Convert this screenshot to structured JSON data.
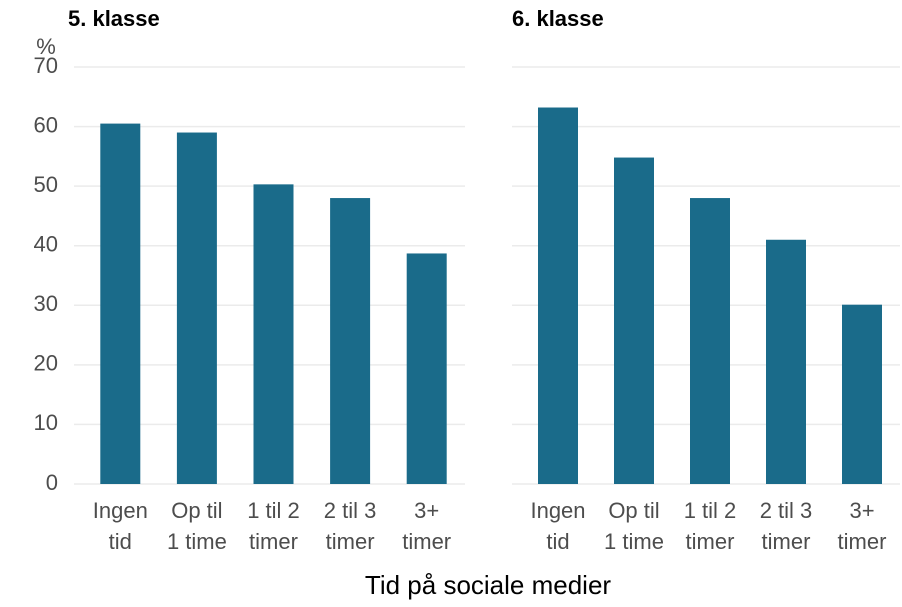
{
  "ylabel": "%",
  "xlabel": "Tid på sociale medier",
  "chart_data": [
    {
      "type": "bar",
      "title": "5. klasse",
      "categories": [
        [
          "Ingen",
          "tid"
        ],
        [
          "Op til",
          "1 time"
        ],
        [
          "1 til 2",
          "timer"
        ],
        [
          "2 til 3",
          "timer"
        ],
        [
          "3+",
          "timer"
        ]
      ],
      "values": [
        60.5,
        59,
        50.3,
        48,
        38.7
      ],
      "color": "#1a6b8a",
      "ylim": [
        0,
        70
      ],
      "yticks": [
        0,
        10,
        20,
        30,
        40,
        50,
        60,
        70
      ],
      "grid": true
    },
    {
      "type": "bar",
      "title": "6. klasse",
      "categories": [
        [
          "Ingen",
          "tid"
        ],
        [
          "Op til",
          "1 time"
        ],
        [
          "1 til 2",
          "timer"
        ],
        [
          "2 til 3",
          "timer"
        ],
        [
          "3+",
          "timer"
        ]
      ],
      "values": [
        63.2,
        54.8,
        48,
        41,
        30.1
      ],
      "color": "#1a6b8a",
      "ylim": [
        0,
        70
      ],
      "yticks": [
        0,
        10,
        20,
        30,
        40,
        50,
        60,
        70
      ],
      "grid": true
    }
  ]
}
